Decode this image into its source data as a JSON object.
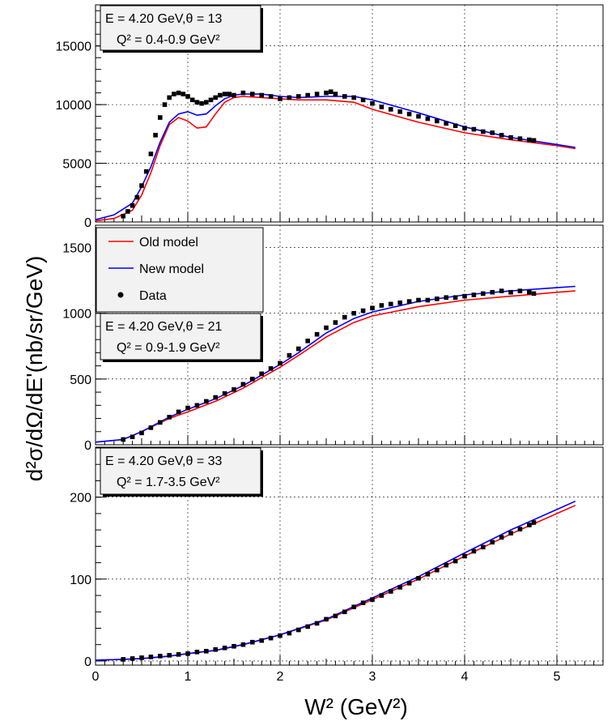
{
  "chart_data": {
    "type": "line",
    "xlabel": "W² (GeV²)",
    "ylabel": "d²σ/dΩ/dE'(nb/sr/GeV)",
    "xlim": [
      0,
      5.5
    ],
    "x_ticks": [
      "0",
      "1",
      "2",
      "3",
      "4",
      "5"
    ],
    "grid": true,
    "legend": {
      "placement": "middle-panel top-left",
      "entries": [
        {
          "label": "Old model",
          "color": "#ff0000",
          "style": "line"
        },
        {
          "label": "New model",
          "color": "#0000ff",
          "style": "line"
        },
        {
          "label": "Data",
          "color": "#000000",
          "style": "marker"
        }
      ]
    },
    "panels": [
      {
        "info_line1": "E = 4.20 GeV,θ = 13",
        "info_line2": "Q² = 0.4-0.9 GeV²",
        "ylim": [
          0,
          18500
        ],
        "y_ticks": [
          0,
          5000,
          10000,
          15000
        ],
        "y_tick_labels": [
          "0",
          "5000",
          "10000",
          "15000"
        ],
        "series": [
          {
            "name": "Old model",
            "color": "#ff0000",
            "x": [
              0,
              0.2,
              0.4,
              0.5,
              0.6,
              0.7,
              0.8,
              0.9,
              1.0,
              1.1,
              1.2,
              1.3,
              1.4,
              1.5,
              1.6,
              1.8,
              2.0,
              2.2,
              2.5,
              2.8,
              3.0,
              3.5,
              4.0,
              4.5,
              5.0,
              5.2
            ],
            "y": [
              100,
              300,
              1000,
              2300,
              4200,
              6500,
              8300,
              8900,
              8600,
              8000,
              8100,
              9200,
              10200,
              10600,
              10700,
              10600,
              10500,
              10400,
              10400,
              10200,
              9600,
              8500,
              7600,
              7000,
              6500,
              6250
            ]
          },
          {
            "name": "New model",
            "color": "#0000ff",
            "x": [
              0,
              0.2,
              0.4,
              0.5,
              0.6,
              0.7,
              0.8,
              0.9,
              1.0,
              1.1,
              1.2,
              1.3,
              1.4,
              1.5,
              1.6,
              1.8,
              2.0,
              2.2,
              2.5,
              2.8,
              3.0,
              3.5,
              4.0,
              4.5,
              5.0,
              5.2
            ],
            "y": [
              200,
              600,
              1600,
              3000,
              4700,
              6800,
              8500,
              9200,
              9400,
              9100,
              9200,
              9900,
              10500,
              10800,
              10900,
              10900,
              10700,
              10600,
              10700,
              10700,
              10400,
              9300,
              8100,
              7200,
              6600,
              6350
            ]
          },
          {
            "name": "Data",
            "color": "#000000",
            "x": [
              0.3,
              0.35,
              0.4,
              0.45,
              0.5,
              0.55,
              0.6,
              0.65,
              0.7,
              0.75,
              0.8,
              0.85,
              0.9,
              0.95,
              1.0,
              1.05,
              1.1,
              1.15,
              1.2,
              1.25,
              1.3,
              1.35,
              1.4,
              1.45,
              1.5,
              1.6,
              1.7,
              1.8,
              1.9,
              2.0,
              2.1,
              2.2,
              2.3,
              2.4,
              2.5,
              2.55,
              2.6,
              2.7,
              2.8,
              2.9,
              3.0,
              3.1,
              3.2,
              3.3,
              3.4,
              3.5,
              3.6,
              3.7,
              3.8,
              3.9,
              4.0,
              4.1,
              4.2,
              4.3,
              4.4,
              4.5,
              4.6,
              4.7,
              4.75
            ],
            "y": [
              500,
              900,
              1400,
              2100,
              3100,
              4300,
              5800,
              7400,
              8900,
              10000,
              10600,
              10900,
              11000,
              10900,
              10700,
              10400,
              10200,
              10100,
              10200,
              10400,
              10600,
              10800,
              10900,
              10900,
              10800,
              11000,
              10900,
              10800,
              10700,
              10500,
              10600,
              10700,
              10800,
              10900,
              11000,
              11100,
              10900,
              10700,
              10600,
              10400,
              10100,
              9800,
              9600,
              9400,
              9200,
              9000,
              8800,
              8600,
              8400,
              8200,
              8000,
              7900,
              7700,
              7600,
              7400,
              7200,
              7100,
              7000,
              6950
            ]
          }
        ]
      },
      {
        "info_line1": "E = 4.20 GeV,θ = 21",
        "info_line2": "Q² = 0.9-1.9 GeV²",
        "ylim": [
          0,
          1670
        ],
        "y_ticks": [
          0,
          500,
          1000,
          1500
        ],
        "y_tick_labels": [
          "0",
          "500",
          "1000",
          "1500"
        ],
        "series": [
          {
            "name": "Old model",
            "color": "#ff0000",
            "x": [
              0,
              0.3,
              0.5,
              0.8,
              1.0,
              1.3,
              1.6,
              1.8,
              2.0,
              2.2,
              2.5,
              2.8,
              3.0,
              3.5,
              4.0,
              4.5,
              5.0,
              5.2
            ],
            "y": [
              20,
              40,
              100,
              200,
              250,
              330,
              430,
              510,
              590,
              680,
              820,
              930,
              980,
              1050,
              1100,
              1130,
              1160,
              1170
            ]
          },
          {
            "name": "New model",
            "color": "#0000ff",
            "x": [
              0,
              0.3,
              0.5,
              0.8,
              1.0,
              1.3,
              1.6,
              1.8,
              2.0,
              2.2,
              2.5,
              2.8,
              3.0,
              3.5,
              4.0,
              4.5,
              5.0,
              5.2
            ],
            "y": [
              20,
              40,
              100,
              210,
              270,
              350,
              450,
              530,
              610,
              700,
              850,
              960,
              1010,
              1090,
              1140,
              1170,
              1195,
              1205
            ]
          },
          {
            "name": "Data",
            "color": "#000000",
            "x": [
              0.3,
              0.4,
              0.5,
              0.6,
              0.7,
              0.8,
              0.9,
              1.0,
              1.1,
              1.2,
              1.3,
              1.4,
              1.5,
              1.6,
              1.7,
              1.8,
              1.9,
              2.0,
              2.1,
              2.2,
              2.3,
              2.4,
              2.5,
              2.6,
              2.7,
              2.8,
              2.9,
              3.0,
              3.1,
              3.2,
              3.3,
              3.4,
              3.5,
              3.6,
              3.7,
              3.8,
              3.9,
              4.0,
              4.1,
              4.2,
              4.3,
              4.4,
              4.5,
              4.6,
              4.7,
              4.75
            ],
            "y": [
              40,
              60,
              90,
              130,
              170,
              210,
              250,
              280,
              300,
              330,
              360,
              390,
              420,
              460,
              500,
              540,
              580,
              620,
              680,
              730,
              790,
              840,
              890,
              930,
              970,
              1000,
              1020,
              1040,
              1060,
              1070,
              1080,
              1090,
              1100,
              1100,
              1110,
              1120,
              1120,
              1130,
              1140,
              1150,
              1160,
              1170,
              1160,
              1170,
              1160,
              1150
            ]
          }
        ]
      },
      {
        "info_line1": "E = 4.20 GeV,θ = 33",
        "info_line2": "Q² = 1.7-3.5 GeV²",
        "ylim": [
          -5,
          261
        ],
        "y_ticks": [
          0,
          100,
          200
        ],
        "y_tick_labels": [
          "0",
          "100",
          "200"
        ],
        "series": [
          {
            "name": "Old model",
            "color": "#ff0000",
            "x": [
              0,
              0.3,
              0.5,
              0.8,
              1.0,
              1.3,
              1.6,
              2.0,
              2.5,
              3.0,
              3.5,
              4.0,
              4.5,
              5.0,
              5.2
            ],
            "y": [
              1,
              2,
              3,
              6,
              9,
              13,
              20,
              32,
              50,
              75,
              100,
              128,
              155,
              180,
              190
            ]
          },
          {
            "name": "New model",
            "color": "#0000ff",
            "x": [
              0,
              0.3,
              0.5,
              0.8,
              1.0,
              1.3,
              1.6,
              2.0,
              2.5,
              3.0,
              3.5,
              4.0,
              4.5,
              5.0,
              5.2
            ],
            "y": [
              1,
              2,
              3,
              6,
              9,
              13,
              20,
              32,
              51,
              77,
              103,
              132,
              160,
              185,
              195
            ]
          },
          {
            "name": "Data",
            "color": "#000000",
            "x": [
              0.3,
              0.4,
              0.5,
              0.6,
              0.7,
              0.8,
              0.9,
              1.0,
              1.1,
              1.2,
              1.3,
              1.4,
              1.5,
              1.6,
              1.7,
              1.8,
              1.9,
              2.0,
              2.1,
              2.2,
              2.3,
              2.4,
              2.5,
              2.6,
              2.7,
              2.8,
              2.9,
              3.0,
              3.1,
              3.2,
              3.3,
              3.4,
              3.5,
              3.6,
              3.7,
              3.8,
              3.9,
              4.0,
              4.1,
              4.2,
              4.3,
              4.4,
              4.5,
              4.6,
              4.7,
              4.75
            ],
            "y": [
              2,
              3,
              4,
              5,
              6,
              7,
              8,
              9,
              11,
              12,
              14,
              16,
              18,
              20,
              23,
              25,
              28,
              31,
              34,
              38,
              42,
              46,
              51,
              55,
              60,
              66,
              71,
              75,
              80,
              85,
              90,
              95,
              101,
              106,
              111,
              117,
              122,
              128,
              134,
              139,
              145,
              151,
              156,
              161,
              166,
              169
            ]
          }
        ]
      }
    ]
  }
}
